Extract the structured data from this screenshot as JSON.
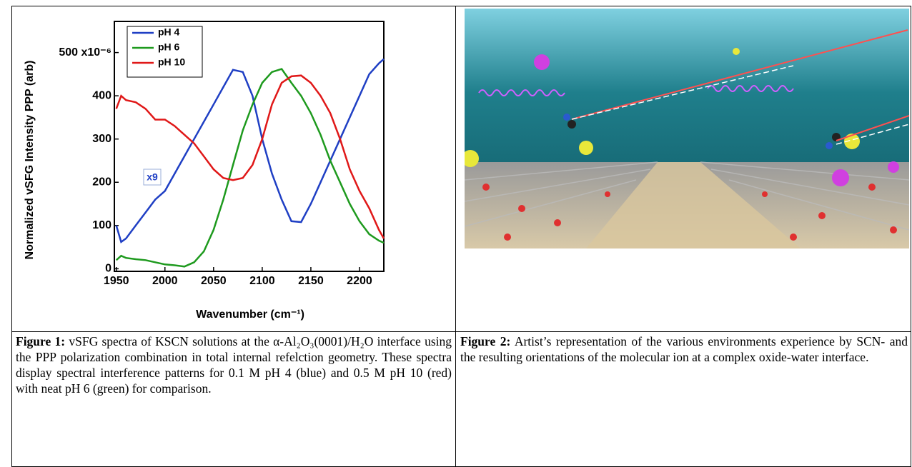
{
  "chart_data": {
    "type": "line",
    "ylabel": "Normalized vSFG Intensity PPP (arb)",
    "xlabel": "Wavenumber (cm⁻¹)",
    "annotation": "x9",
    "x": [
      1950,
      1955,
      1960,
      1970,
      1980,
      1990,
      2000,
      2010,
      2020,
      2030,
      2040,
      2050,
      2060,
      2070,
      2080,
      2090,
      2100,
      2110,
      2120,
      2130,
      2140,
      2150,
      2160,
      2170,
      2180,
      2190,
      2200,
      2210,
      2220,
      2225
    ],
    "series": [
      {
        "name": "pH 4",
        "color": "#1f3fc4",
        "values": [
          100,
          62,
          70,
          100,
          130,
          160,
          180,
          220,
          260,
          300,
          340,
          380,
          420,
          460,
          455,
          400,
          300,
          220,
          160,
          110,
          108,
          150,
          200,
          250,
          300,
          350,
          400,
          450,
          475,
          485
        ]
      },
      {
        "name": "pH 6",
        "color": "#1e9a1e",
        "values": [
          20,
          30,
          25,
          22,
          20,
          15,
          10,
          8,
          5,
          15,
          40,
          90,
          160,
          240,
          320,
          380,
          430,
          455,
          462,
          430,
          400,
          360,
          310,
          250,
          200,
          150,
          110,
          80,
          65,
          60
        ]
      },
      {
        "name": "pH 10",
        "color": "#e01818",
        "values": [
          370,
          400,
          390,
          385,
          370,
          345,
          345,
          330,
          310,
          290,
          260,
          230,
          210,
          205,
          210,
          240,
          300,
          380,
          430,
          445,
          447,
          430,
          400,
          360,
          300,
          230,
          180,
          140,
          90,
          70
        ]
      }
    ],
    "xlim": [
      1948,
      2225
    ],
    "ylim": [
      -6,
      572
    ],
    "xticks": [
      1950,
      2000,
      2050,
      2100,
      2150,
      2200
    ],
    "yticks": [
      0,
      100,
      200,
      300,
      400,
      {
        "value": 500,
        "label": "500 x10⁻⁶"
      }
    ],
    "legend": "upper left"
  },
  "figure1": {
    "label": "Figure 1:",
    "caption": "vSFG spectra of KSCN solutions at the α-Al₂O₃(0001)/H₂O interface using the PPP polarization combination in total internal refelction geometry. These spectra display spectral interference patterns for 0.1 M pH 4 (blue) and 0.5 M pH 10 (red) with neat pH 6 (green) for comparison."
  },
  "figure2": {
    "label": "Figure 2:",
    "caption": "Artist’s representation of the various environments experience by SCN- and the resulting orientations of the molecular ion at a complex oxide-water interface."
  }
}
